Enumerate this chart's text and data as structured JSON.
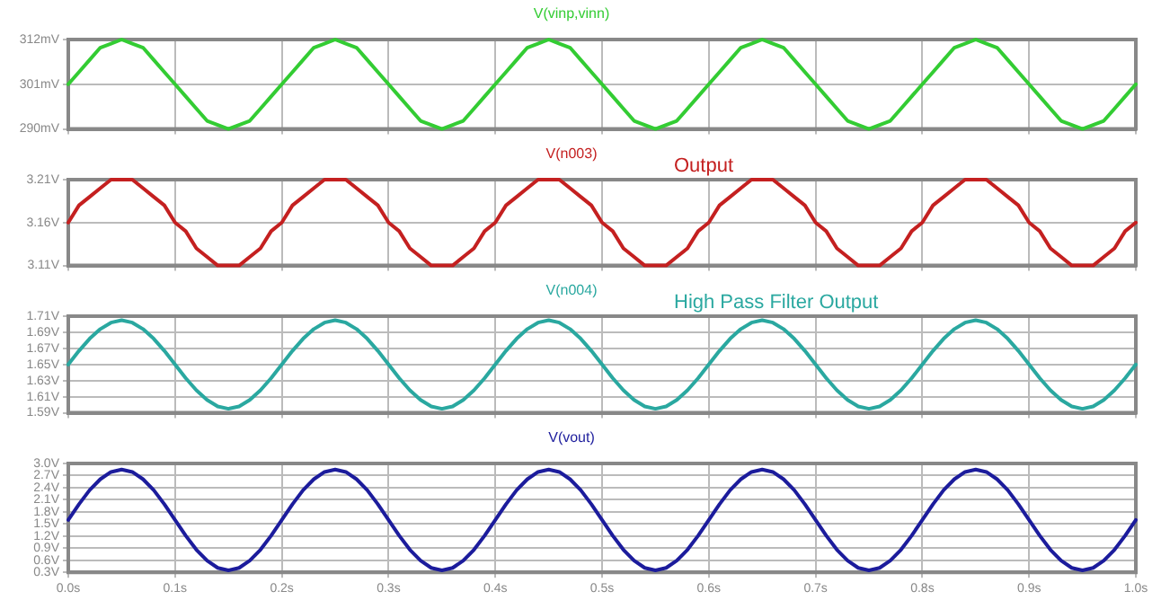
{
  "chart_data": [
    {
      "type": "line",
      "x": [
        0,
        0.01,
        0.02,
        0.03,
        0.04,
        0.05,
        0.06,
        0.07,
        0.08,
        0.09,
        0.1,
        0.11,
        0.12,
        0.13,
        0.14,
        0.15,
        0.16,
        0.17,
        0.18,
        0.19,
        0.2,
        0.21,
        0.22,
        0.23,
        0.24,
        0.25,
        0.26,
        0.27,
        0.28,
        0.29,
        0.3,
        0.31,
        0.32,
        0.33,
        0.34,
        0.35,
        0.36,
        0.37,
        0.38,
        0.39,
        0.4,
        0.41,
        0.42,
        0.43,
        0.44,
        0.45,
        0.46,
        0.47,
        0.48,
        0.49,
        0.5,
        0.51,
        0.52,
        0.53,
        0.54,
        0.55,
        0.56,
        0.57,
        0.58,
        0.59,
        0.6,
        0.61,
        0.62,
        0.63,
        0.64,
        0.65,
        0.66,
        0.67,
        0.68,
        0.69,
        0.7,
        0.71,
        0.72,
        0.73,
        0.74,
        0.75,
        0.76,
        0.77,
        0.78,
        0.79,
        0.8,
        0.81,
        0.82,
        0.83,
        0.84,
        0.85,
        0.86,
        0.87,
        0.88,
        0.89,
        0.9,
        0.91,
        0.92,
        0.93,
        0.94,
        0.95,
        0.96,
        0.97,
        0.98,
        0.99,
        1
      ],
      "series": [
        {
          "name": "V(vinp,vinn)",
          "color": "#33cc33",
          "values": [
            301,
            304,
            307,
            310,
            311,
            312,
            311,
            310,
            307,
            304,
            301,
            298,
            295,
            292,
            291,
            290,
            291,
            292,
            295,
            298,
            301,
            304,
            307,
            310,
            311,
            312,
            311,
            310,
            307,
            304,
            301,
            298,
            295,
            292,
            291,
            290,
            291,
            292,
            295,
            298,
            301,
            304,
            307,
            310,
            311,
            312,
            311,
            310,
            307,
            304,
            301,
            298,
            295,
            292,
            291,
            290,
            291,
            292,
            295,
            298,
            301,
            304,
            307,
            310,
            311,
            312,
            311,
            310,
            307,
            304,
            301,
            298,
            295,
            292,
            291,
            290,
            291,
            292,
            295,
            298,
            301,
            304,
            307,
            310,
            311,
            312,
            311,
            310,
            307,
            304,
            301,
            298,
            295,
            292,
            291,
            290,
            291,
            292,
            295,
            298,
            301
          ]
        }
      ],
      "xlim": [
        0,
        1
      ],
      "xticks": [
        {
          "value": 0,
          "label": null
        },
        {
          "value": 0.1,
          "label": null
        },
        {
          "value": 0.2,
          "label": null
        },
        {
          "value": 0.3,
          "label": null
        },
        {
          "value": 0.4,
          "label": null
        },
        {
          "value": 0.5,
          "label": null
        },
        {
          "value": 0.6,
          "label": null
        },
        {
          "value": 0.7,
          "label": null
        },
        {
          "value": 0.8,
          "label": null
        },
        {
          "value": 0.9,
          "label": null
        },
        {
          "value": 1,
          "label": null
        }
      ],
      "ylim": [
        290,
        312
      ],
      "yticks": [
        {
          "value": 290,
          "label": "290mV"
        },
        {
          "value": 301,
          "label": "301mV"
        },
        {
          "value": 312,
          "label": "312mV"
        }
      ],
      "grid": true,
      "legend": "top",
      "marker": "none",
      "line_style": "solid",
      "tick_labels": "y"
    },
    {
      "type": "line",
      "x": [
        0,
        0.01,
        0.02,
        0.03,
        0.04,
        0.05,
        0.06,
        0.07,
        0.08,
        0.09,
        0.1,
        0.11,
        0.12,
        0.13,
        0.14,
        0.15,
        0.16,
        0.17,
        0.18,
        0.19,
        0.2,
        0.21,
        0.22,
        0.23,
        0.24,
        0.25,
        0.26,
        0.27,
        0.28,
        0.29,
        0.3,
        0.31,
        0.32,
        0.33,
        0.34,
        0.35,
        0.36,
        0.37,
        0.38,
        0.39,
        0.4,
        0.41,
        0.42,
        0.43,
        0.44,
        0.45,
        0.46,
        0.47,
        0.48,
        0.49,
        0.5,
        0.51,
        0.52,
        0.53,
        0.54,
        0.55,
        0.56,
        0.57,
        0.58,
        0.59,
        0.6,
        0.61,
        0.62,
        0.63,
        0.64,
        0.65,
        0.66,
        0.67,
        0.68,
        0.69,
        0.7,
        0.71,
        0.72,
        0.73,
        0.74,
        0.75,
        0.76,
        0.77,
        0.78,
        0.79,
        0.8,
        0.81,
        0.82,
        0.83,
        0.84,
        0.85,
        0.86,
        0.87,
        0.88,
        0.89,
        0.9,
        0.91,
        0.92,
        0.93,
        0.94,
        0.95,
        0.96,
        0.97,
        0.98,
        0.99,
        1
      ],
      "series": [
        {
          "name": "V(n003)",
          "color": "#c42020",
          "values": [
            3.16,
            3.18,
            3.19,
            3.2,
            3.21,
            3.21,
            3.21,
            3.2,
            3.19,
            3.18,
            3.16,
            3.15,
            3.13,
            3.12,
            3.11,
            3.11,
            3.11,
            3.12,
            3.13,
            3.15,
            3.16,
            3.18,
            3.19,
            3.2,
            3.21,
            3.21,
            3.21,
            3.2,
            3.19,
            3.18,
            3.16,
            3.15,
            3.13,
            3.12,
            3.11,
            3.11,
            3.11,
            3.12,
            3.13,
            3.15,
            3.16,
            3.18,
            3.19,
            3.2,
            3.21,
            3.21,
            3.21,
            3.2,
            3.19,
            3.18,
            3.16,
            3.15,
            3.13,
            3.12,
            3.11,
            3.11,
            3.11,
            3.12,
            3.13,
            3.15,
            3.16,
            3.18,
            3.19,
            3.2,
            3.21,
            3.21,
            3.21,
            3.2,
            3.19,
            3.18,
            3.16,
            3.15,
            3.13,
            3.12,
            3.11,
            3.11,
            3.11,
            3.12,
            3.13,
            3.15,
            3.16,
            3.18,
            3.19,
            3.2,
            3.21,
            3.21,
            3.21,
            3.2,
            3.19,
            3.18,
            3.16,
            3.15,
            3.13,
            3.12,
            3.11,
            3.11,
            3.11,
            3.12,
            3.13,
            3.15,
            3.16
          ]
        }
      ],
      "xlim": [
        0,
        1
      ],
      "xticks": [
        {
          "value": 0,
          "label": null
        },
        {
          "value": 0.1,
          "label": null
        },
        {
          "value": 0.2,
          "label": null
        },
        {
          "value": 0.3,
          "label": null
        },
        {
          "value": 0.4,
          "label": null
        },
        {
          "value": 0.5,
          "label": null
        },
        {
          "value": 0.6,
          "label": null
        },
        {
          "value": 0.7,
          "label": null
        },
        {
          "value": 0.8,
          "label": null
        },
        {
          "value": 0.9,
          "label": null
        },
        {
          "value": 1,
          "label": null
        }
      ],
      "ylim": [
        3.11,
        3.21
      ],
      "yticks": [
        {
          "value": 3.11,
          "label": "3.11V"
        },
        {
          "value": 3.16,
          "label": "3.16V"
        },
        {
          "value": 3.21,
          "label": "3.21V"
        }
      ],
      "annotations": [
        "Output"
      ],
      "grid": true,
      "legend": "top",
      "marker": "none",
      "line_style": "solid",
      "tick_labels": "y"
    },
    {
      "type": "line",
      "x": [
        0,
        0.01,
        0.02,
        0.03,
        0.04,
        0.05,
        0.06,
        0.07,
        0.08,
        0.09,
        0.1,
        0.11,
        0.12,
        0.13,
        0.14,
        0.15,
        0.16,
        0.17,
        0.18,
        0.19,
        0.2,
        0.21,
        0.22,
        0.23,
        0.24,
        0.25,
        0.26,
        0.27,
        0.28,
        0.29,
        0.3,
        0.31,
        0.32,
        0.33,
        0.34,
        0.35,
        0.36,
        0.37,
        0.38,
        0.39,
        0.4,
        0.41,
        0.42,
        0.43,
        0.44,
        0.45,
        0.46,
        0.47,
        0.48,
        0.49,
        0.5,
        0.51,
        0.52,
        0.53,
        0.54,
        0.55,
        0.56,
        0.57,
        0.58,
        0.59,
        0.6,
        0.61,
        0.62,
        0.63,
        0.64,
        0.65,
        0.66,
        0.67,
        0.68,
        0.69,
        0.7,
        0.71,
        0.72,
        0.73,
        0.74,
        0.75,
        0.76,
        0.77,
        0.78,
        0.79,
        0.8,
        0.81,
        0.82,
        0.83,
        0.84,
        0.85,
        0.86,
        0.87,
        0.88,
        0.89,
        0.9,
        0.91,
        0.92,
        0.93,
        0.94,
        0.95,
        0.96,
        0.97,
        0.98,
        0.99,
        1
      ],
      "series": [
        {
          "name": "V(n004)",
          "color": "#2aa8a0",
          "values": [
            1.65,
            1.667,
            1.682,
            1.694,
            1.702,
            1.705,
            1.702,
            1.694,
            1.682,
            1.667,
            1.65,
            1.633,
            1.618,
            1.606,
            1.598,
            1.595,
            1.598,
            1.606,
            1.618,
            1.633,
            1.65,
            1.667,
            1.682,
            1.694,
            1.702,
            1.705,
            1.702,
            1.694,
            1.682,
            1.667,
            1.65,
            1.633,
            1.618,
            1.606,
            1.598,
            1.595,
            1.598,
            1.606,
            1.618,
            1.633,
            1.65,
            1.667,
            1.682,
            1.694,
            1.702,
            1.705,
            1.702,
            1.694,
            1.682,
            1.667,
            1.65,
            1.633,
            1.618,
            1.606,
            1.598,
            1.595,
            1.598,
            1.606,
            1.618,
            1.633,
            1.65,
            1.667,
            1.682,
            1.694,
            1.702,
            1.705,
            1.702,
            1.694,
            1.682,
            1.667,
            1.65,
            1.633,
            1.618,
            1.606,
            1.598,
            1.595,
            1.598,
            1.606,
            1.618,
            1.633,
            1.65,
            1.667,
            1.682,
            1.694,
            1.702,
            1.705,
            1.702,
            1.694,
            1.682,
            1.667,
            1.65,
            1.633,
            1.618,
            1.606,
            1.598,
            1.595,
            1.598,
            1.606,
            1.618,
            1.633,
            1.65
          ]
        }
      ],
      "xlim": [
        0,
        1
      ],
      "xticks": [
        {
          "value": 0,
          "label": null
        },
        {
          "value": 0.1,
          "label": null
        },
        {
          "value": 0.2,
          "label": null
        },
        {
          "value": 0.3,
          "label": null
        },
        {
          "value": 0.4,
          "label": null
        },
        {
          "value": 0.5,
          "label": null
        },
        {
          "value": 0.6,
          "label": null
        },
        {
          "value": 0.7,
          "label": null
        },
        {
          "value": 0.8,
          "label": null
        },
        {
          "value": 0.9,
          "label": null
        },
        {
          "value": 1,
          "label": null
        }
      ],
      "ylim": [
        1.59,
        1.71
      ],
      "yticks": [
        {
          "value": 1.59,
          "label": "1.59V"
        },
        {
          "value": 1.61,
          "label": "1.61V"
        },
        {
          "value": 1.63,
          "label": "1.63V"
        },
        {
          "value": 1.65,
          "label": "1.65V"
        },
        {
          "value": 1.67,
          "label": "1.67V"
        },
        {
          "value": 1.69,
          "label": "1.69V"
        },
        {
          "value": 1.71,
          "label": "1.71V"
        }
      ],
      "annotations": [
        "High Pass Filter Output"
      ],
      "grid": true,
      "legend": "top",
      "marker": "none",
      "line_style": "solid",
      "tick_labels": "y"
    },
    {
      "type": "line",
      "x": [
        0,
        0.01,
        0.02,
        0.03,
        0.04,
        0.05,
        0.06,
        0.07,
        0.08,
        0.09,
        0.1,
        0.11,
        0.12,
        0.13,
        0.14,
        0.15,
        0.16,
        0.17,
        0.18,
        0.19,
        0.2,
        0.21,
        0.22,
        0.23,
        0.24,
        0.25,
        0.26,
        0.27,
        0.28,
        0.29,
        0.3,
        0.31,
        0.32,
        0.33,
        0.34,
        0.35,
        0.36,
        0.37,
        0.38,
        0.39,
        0.4,
        0.41,
        0.42,
        0.43,
        0.44,
        0.45,
        0.46,
        0.47,
        0.48,
        0.49,
        0.5,
        0.51,
        0.52,
        0.53,
        0.54,
        0.55,
        0.56,
        0.57,
        0.58,
        0.59,
        0.6,
        0.61,
        0.62,
        0.63,
        0.64,
        0.65,
        0.66,
        0.67,
        0.68,
        0.69,
        0.7,
        0.71,
        0.72,
        0.73,
        0.74,
        0.75,
        0.76,
        0.77,
        0.78,
        0.79,
        0.8,
        0.81,
        0.82,
        0.83,
        0.84,
        0.85,
        0.86,
        0.87,
        0.88,
        0.89,
        0.9,
        0.91,
        0.92,
        0.93,
        0.94,
        0.95,
        0.96,
        0.97,
        0.98,
        0.99,
        1
      ],
      "series": [
        {
          "name": "V(vout)",
          "color": "#1c1c9c",
          "values": [
            1.6,
            1.99,
            2.34,
            2.61,
            2.79,
            2.85,
            2.79,
            2.61,
            2.34,
            1.99,
            1.6,
            1.21,
            0.86,
            0.59,
            0.41,
            0.35,
            0.41,
            0.59,
            0.86,
            1.21,
            1.6,
            1.99,
            2.34,
            2.61,
            2.79,
            2.85,
            2.79,
            2.61,
            2.34,
            1.99,
            1.6,
            1.21,
            0.86,
            0.59,
            0.41,
            0.35,
            0.41,
            0.59,
            0.86,
            1.21,
            1.6,
            1.99,
            2.34,
            2.61,
            2.79,
            2.85,
            2.79,
            2.61,
            2.34,
            1.99,
            1.6,
            1.21,
            0.86,
            0.59,
            0.41,
            0.35,
            0.41,
            0.59,
            0.86,
            1.21,
            1.6,
            1.99,
            2.34,
            2.61,
            2.79,
            2.85,
            2.79,
            2.61,
            2.34,
            1.99,
            1.6,
            1.21,
            0.86,
            0.59,
            0.41,
            0.35,
            0.41,
            0.59,
            0.86,
            1.21,
            1.6,
            1.99,
            2.34,
            2.61,
            2.79,
            2.85,
            2.79,
            2.61,
            2.34,
            1.99,
            1.6,
            1.21,
            0.86,
            0.59,
            0.41,
            0.35,
            0.41,
            0.59,
            0.86,
            1.21,
            1.6
          ]
        }
      ],
      "xlim": [
        0,
        1
      ],
      "xticks": [
        {
          "value": 0,
          "label": "0.0s"
        },
        {
          "value": 0.1,
          "label": "0.1s"
        },
        {
          "value": 0.2,
          "label": "0.2s"
        },
        {
          "value": 0.3,
          "label": "0.3s"
        },
        {
          "value": 0.4,
          "label": "0.4s"
        },
        {
          "value": 0.5,
          "label": "0.5s"
        },
        {
          "value": 0.6,
          "label": "0.6s"
        },
        {
          "value": 0.7,
          "label": "0.7s"
        },
        {
          "value": 0.8,
          "label": "0.8s"
        },
        {
          "value": 0.9,
          "label": "0.9s"
        },
        {
          "value": 1,
          "label": "1.0s"
        }
      ],
      "ylim": [
        0.3,
        3.0
      ],
      "yticks": [
        {
          "value": 0.3,
          "label": "0.3V"
        },
        {
          "value": 0.6,
          "label": "0.6V"
        },
        {
          "value": 0.9,
          "label": "0.9V"
        },
        {
          "value": 1.2,
          "label": "1.2V"
        },
        {
          "value": 1.5,
          "label": "1.5V"
        },
        {
          "value": 1.8,
          "label": "1.8V"
        },
        {
          "value": 2.1,
          "label": "2.1V"
        },
        {
          "value": 2.4,
          "label": "2.4V"
        },
        {
          "value": 2.7,
          "label": "2.7V"
        },
        {
          "value": 3.0,
          "label": "3.0V"
        }
      ],
      "grid": true,
      "legend": "top",
      "marker": "none",
      "line_style": "solid"
    }
  ]
}
